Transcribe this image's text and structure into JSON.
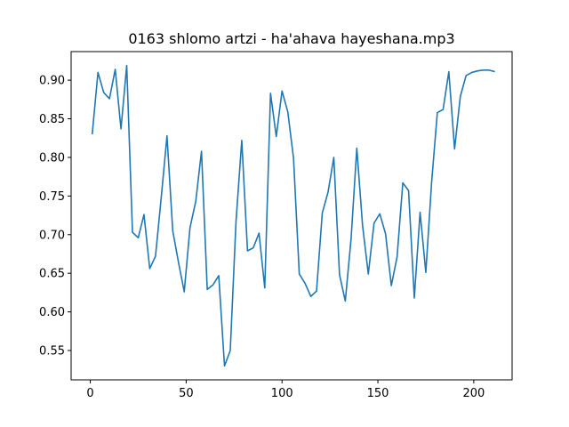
{
  "chart_data": {
    "type": "line",
    "title": "0163 shlomo artzi - ha'ahava hayeshana.mp3",
    "xlabel": "",
    "ylabel": "",
    "xlim": [
      -10,
      220
    ],
    "ylim": [
      0.512,
      0.937
    ],
    "xticks": [
      0,
      50,
      100,
      150,
      200
    ],
    "yticks": [
      0.55,
      0.6,
      0.65,
      0.7,
      0.75,
      0.8,
      0.85,
      0.9
    ],
    "ytick_labels": [
      "0.55",
      "0.60",
      "0.65",
      "0.70",
      "0.75",
      "0.80",
      "0.85",
      "0.90"
    ],
    "grid": false,
    "line_color": "#1f77b4",
    "series": [
      {
        "x": [
          1,
          4,
          7,
          10,
          13,
          16,
          19,
          22,
          25,
          28,
          31,
          34,
          37,
          40,
          43,
          46,
          49,
          52,
          55,
          58,
          61,
          64,
          67,
          70,
          73,
          76,
          79,
          82,
          85,
          88,
          91,
          94,
          97,
          100,
          103,
          106,
          109,
          112,
          115,
          118,
          121,
          124,
          127,
          130,
          133,
          136,
          139,
          142,
          145,
          148,
          151,
          154,
          157,
          160,
          163,
          166,
          169,
          172,
          175,
          178,
          181,
          184,
          187,
          190,
          193,
          196,
          199,
          202,
          205,
          208,
          211
        ],
        "y": [
          0.83,
          0.91,
          0.884,
          0.876,
          0.914,
          0.837,
          0.919,
          0.703,
          0.696,
          0.726,
          0.656,
          0.672,
          0.748,
          0.828,
          0.705,
          0.664,
          0.626,
          0.709,
          0.743,
          0.808,
          0.629,
          0.635,
          0.647,
          0.53,
          0.55,
          0.717,
          0.822,
          0.679,
          0.683,
          0.702,
          0.631,
          0.883,
          0.827,
          0.886,
          0.859,
          0.799,
          0.649,
          0.637,
          0.62,
          0.627,
          0.728,
          0.755,
          0.8,
          0.648,
          0.614,
          0.694,
          0.812,
          0.712,
          0.649,
          0.715,
          0.727,
          0.701,
          0.634,
          0.671,
          0.767,
          0.757,
          0.618,
          0.729,
          0.651,
          0.767,
          0.858,
          0.862,
          0.911,
          0.811,
          0.879,
          0.906,
          0.91,
          0.912,
          0.913,
          0.913,
          0.911
        ]
      }
    ]
  }
}
